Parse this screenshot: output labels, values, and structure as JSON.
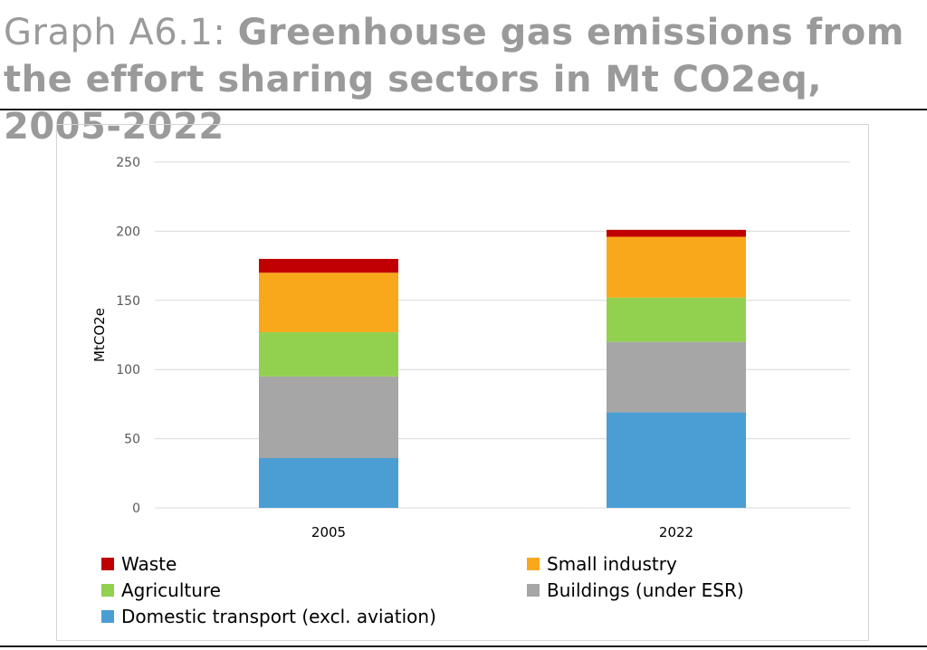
{
  "title": {
    "prefix": "Graph A6.1:",
    "main": "Greenhouse gas emissions from the effort sharing sectors in Mt CO2eq, 2005-2022"
  },
  "chart_data": {
    "type": "bar",
    "stacked": true,
    "categories": [
      "2005",
      "2022"
    ],
    "ylabel": "MtCO2e",
    "xlabel": "",
    "ylim": [
      0,
      250
    ],
    "yticks": [
      0,
      50,
      100,
      150,
      200,
      250
    ],
    "grid": true,
    "legend_position": "bottom",
    "series": [
      {
        "name": "Domestic transport (excl. aviation)",
        "color": "#4a9ed4",
        "values": [
          36,
          69
        ]
      },
      {
        "name": "Buildings (under ESR)",
        "color": "#a6a6a6",
        "values": [
          59,
          51
        ]
      },
      {
        "name": "Agriculture",
        "color": "#92d050",
        "values": [
          32,
          32
        ]
      },
      {
        "name": "Small industry",
        "color": "#f9a81b",
        "values": [
          43,
          44
        ]
      },
      {
        "name": "Waste",
        "color": "#c00000",
        "values": [
          10,
          5
        ]
      }
    ],
    "legend_order": [
      "Waste",
      "Small industry",
      "Agriculture",
      "Buildings (under ESR)",
      "Domestic transport (excl. aviation)"
    ]
  }
}
